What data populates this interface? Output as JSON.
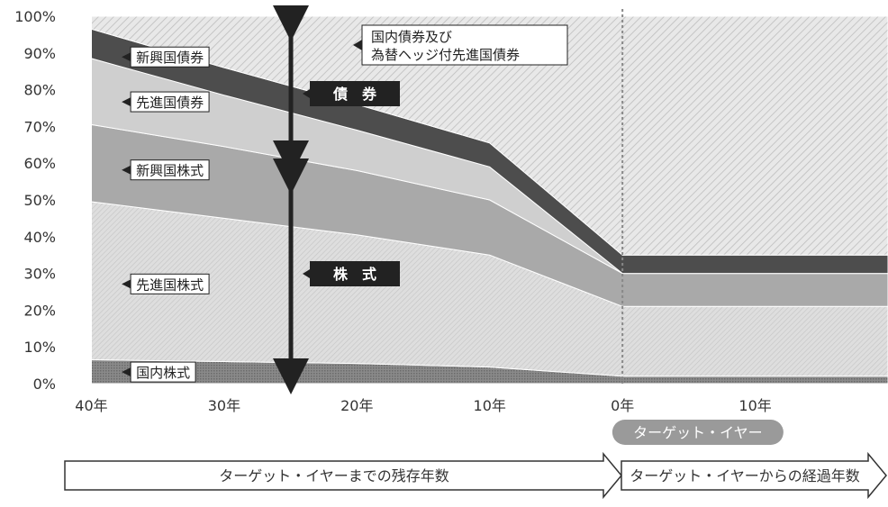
{
  "chart_data": {
    "type": "area",
    "stacked": true,
    "x": [
      40,
      30,
      20,
      10,
      0,
      -10,
      -20
    ],
    "x_ticks": [
      {
        "x": 40,
        "label": "40年"
      },
      {
        "x": 30,
        "label": "30年"
      },
      {
        "x": 20,
        "label": "20年"
      },
      {
        "x": 10,
        "label": "10年"
      },
      {
        "x": 0,
        "label": "0年"
      },
      {
        "x": -10,
        "label": "10年"
      }
    ],
    "xlim": [
      42,
      -20
    ],
    "ylim": [
      0,
      100
    ],
    "y_ticks": [
      "0%",
      "10%",
      "20%",
      "30%",
      "40%",
      "50%",
      "60%",
      "70%",
      "80%",
      "90%",
      "100%"
    ],
    "series": [
      {
        "name": "国内株式",
        "values": [
          6.5,
          6,
          5.5,
          4.5,
          2,
          2,
          2
        ],
        "color": "#7c7c7c",
        "pattern": "dots"
      },
      {
        "name": "先進国株式",
        "values": [
          43,
          39,
          35,
          30.5,
          19,
          19,
          19
        ],
        "color": "#d9d9d9",
        "pattern": "hatch-fine"
      },
      {
        "name": "新興国株式",
        "values": [
          21,
          19.5,
          17.5,
          15,
          9,
          9,
          9
        ],
        "color": "#a9a9a9",
        "pattern": "solid"
      },
      {
        "name": "先進国債券",
        "values": [
          18,
          14,
          11,
          9,
          0,
          0,
          0
        ],
        "color": "#cfcfcf",
        "pattern": "solid"
      },
      {
        "name": "新興国債券",
        "values": [
          8,
          7.5,
          7,
          6.5,
          5,
          5,
          5
        ],
        "color": "#4d4d4d",
        "pattern": "solid"
      },
      {
        "name": "国内債券及び為替ヘッジ付先進国債券",
        "values": [
          3.5,
          14,
          24,
          34.5,
          65,
          65,
          65
        ],
        "color": "#e6e6e6",
        "pattern": "hatch"
      }
    ],
    "legend_labels": [
      {
        "text": "新興国債券",
        "series": 4
      },
      {
        "text": "先進国債券",
        "series": 3
      },
      {
        "text": "新興国株式",
        "series": 2
      },
      {
        "text": "先進国株式",
        "series": 1
      },
      {
        "text": "国内株式",
        "series": 0
      }
    ],
    "top_label": [
      "国内債券及び",
      "為替ヘッジ付先進国債券"
    ],
    "annotations": {
      "bonds": "債　券",
      "stocks": "株　式",
      "target_year": "ターゲット・イヤー",
      "before_arrow": "ターゲット・イヤーまでの残存年数",
      "after_arrow": "ターゲット・イヤーからの経過年数"
    },
    "colors": {
      "axis_text": "#333333",
      "arrow": "#222222",
      "annot_box": "#222222",
      "target_pill": "#9a9a9a",
      "divider": "#888888"
    }
  }
}
